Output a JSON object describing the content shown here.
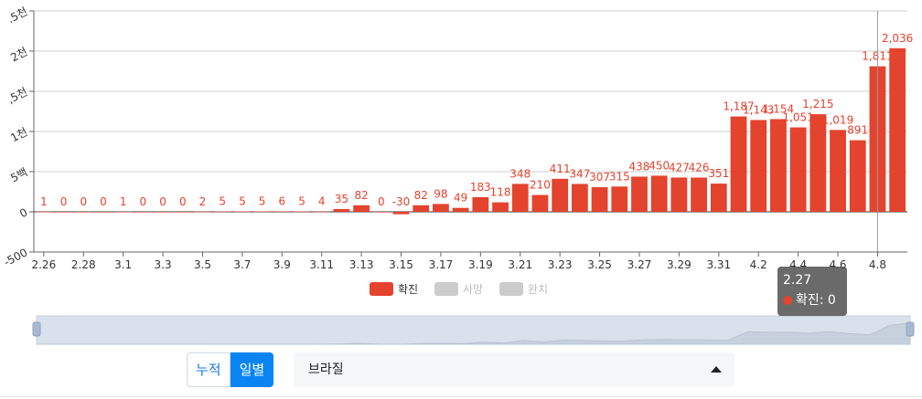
{
  "chart_data": {
    "type": "bar",
    "categories": [
      "2.26",
      "2.27",
      "2.28",
      "2.29",
      "3.1",
      "3.2",
      "3.3",
      "3.4",
      "3.5",
      "3.6",
      "3.7",
      "3.8",
      "3.9",
      "3.10",
      "3.11",
      "3.12",
      "3.13",
      "3.14",
      "3.15",
      "3.16",
      "3.17",
      "3.18",
      "3.19",
      "3.20",
      "3.21",
      "3.22",
      "3.23",
      "3.24",
      "3.25",
      "3.26",
      "3.27",
      "3.28",
      "3.29",
      "3.30",
      "3.31",
      "4.1",
      "4.2",
      "4.3",
      "4.4",
      "4.5",
      "4.6",
      "4.7",
      "4.8",
      "4.9"
    ],
    "x_tick_labels": [
      "2.26",
      "2.28",
      "3.1",
      "3.3",
      "3.5",
      "3.7",
      "3.9",
      "3.11",
      "3.13",
      "3.15",
      "3.17",
      "3.19",
      "3.21",
      "3.23",
      "3.25",
      "3.27",
      "3.29",
      "3.31",
      "4.2",
      "4.4",
      "4.6",
      "4.8"
    ],
    "y_tick_labels": [
      ".5천",
      "2천",
      ",5천",
      "1천",
      "5백",
      "0",
      "-500"
    ],
    "y_ticks": [
      2500,
      2000,
      1500,
      1000,
      500,
      0,
      -500
    ],
    "ylim": [
      -500,
      2500
    ],
    "grid": true,
    "series": [
      {
        "name": "확진",
        "color": "#e4432d",
        "values": [
          1,
          0,
          0,
          0,
          1,
          0,
          0,
          0,
          2,
          5,
          5,
          5,
          6,
          5,
          4,
          35,
          82,
          0,
          -30,
          82,
          98,
          49,
          183,
          118,
          348,
          210,
          411,
          347,
          307,
          315,
          438,
          450,
          427,
          426,
          351,
          1187,
          1143,
          1154,
          1051,
          1215,
          1019,
          891,
          1811,
          2036
        ],
        "labels": [
          "1",
          "0",
          "0",
          "0",
          "1",
          "0",
          "0",
          "0",
          "2",
          "5",
          "5",
          "5",
          "6",
          "5",
          "4",
          "35",
          "82",
          "0",
          "-30",
          "82",
          "98",
          "49",
          "183",
          "118",
          "348",
          "210",
          "411",
          "347",
          "307",
          "315",
          "438",
          "450",
          "427",
          "426",
          "351",
          "1,187",
          "1,143",
          "1,154",
          "1,051",
          "1,215",
          "1,019",
          "891",
          "1,811",
          "2,036"
        ]
      }
    ],
    "legend": {
      "position": "bottom",
      "items": [
        {
          "label": "확진",
          "color": "#e4432d",
          "active": true
        },
        {
          "label": "사망",
          "color": "#cccccc",
          "active": false
        },
        {
          "label": "완치",
          "color": "#cccccc",
          "active": false
        }
      ]
    },
    "crosshair_category": "4.8"
  },
  "tooltip": {
    "title": "2.27",
    "series_label": "확진: 0",
    "dot_color": "#e4432d"
  },
  "controls": {
    "cumulative_label": "누적",
    "daily_label": "일별",
    "active": "일별"
  },
  "country_select": {
    "value": "브라질"
  }
}
